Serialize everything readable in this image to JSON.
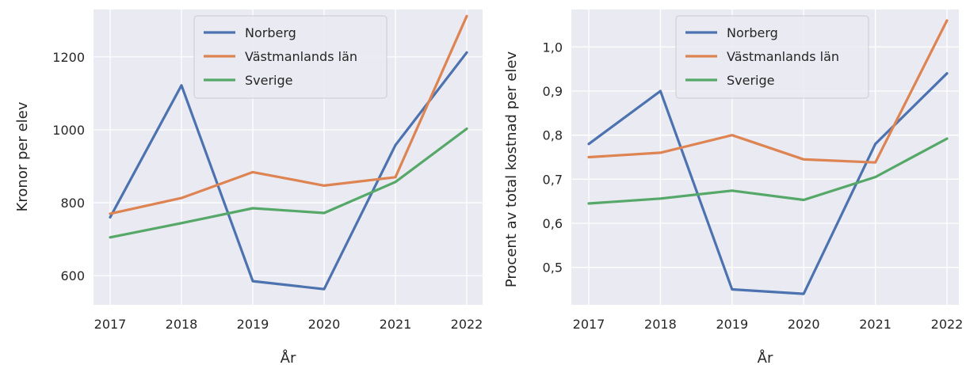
{
  "chart_data": [
    {
      "type": "line",
      "title": "",
      "xlabel": "År",
      "ylabel": "Kronor per elev",
      "x": [
        2017,
        2018,
        2019,
        2020,
        2021,
        2022
      ],
      "x_tick_labels": [
        "2017",
        "2018",
        "2019",
        "2020",
        "2021",
        "2022"
      ],
      "y_ticks": [
        600,
        800,
        1000,
        1200
      ],
      "y_tick_labels": [
        "600",
        "800",
        "1000",
        "1200"
      ],
      "ylim": [
        520,
        1330
      ],
      "grid": true,
      "legend_position": "top-center",
      "series": [
        {
          "name": "Norberg",
          "color": "#4c72b0",
          "values": [
            760,
            1122,
            585,
            563,
            958,
            1212
          ]
        },
        {
          "name": "Västmanlands län",
          "color": "#dd8452",
          "values": [
            770,
            813,
            884,
            847,
            870,
            1312
          ]
        },
        {
          "name": "Sverige",
          "color": "#55a868",
          "values": [
            705,
            744,
            785,
            772,
            857,
            1003
          ]
        }
      ]
    },
    {
      "type": "line",
      "title": "",
      "xlabel": "År",
      "ylabel": "Procent av total kostnad per elev",
      "x": [
        2017,
        2018,
        2019,
        2020,
        2021,
        2022
      ],
      "x_tick_labels": [
        "2017",
        "2018",
        "2019",
        "2020",
        "2021",
        "2022"
      ],
      "y_ticks": [
        0.5,
        0.6,
        0.7,
        0.8,
        0.9,
        1.0
      ],
      "y_tick_labels": [
        "0,5",
        "0,6",
        "0,7",
        "0,8",
        "0,9",
        "1,0"
      ],
      "ylim": [
        0.415,
        1.085
      ],
      "grid": true,
      "legend_position": "top-center",
      "series": [
        {
          "name": "Norberg",
          "color": "#4c72b0",
          "values": [
            0.78,
            0.9,
            0.45,
            0.44,
            0.78,
            0.94
          ]
        },
        {
          "name": "Västmanlands län",
          "color": "#dd8452",
          "values": [
            0.75,
            0.76,
            0.8,
            0.745,
            0.738,
            1.06
          ]
        },
        {
          "name": "Sverige",
          "color": "#55a868",
          "values": [
            0.645,
            0.656,
            0.674,
            0.653,
            0.705,
            0.792
          ]
        }
      ]
    }
  ]
}
